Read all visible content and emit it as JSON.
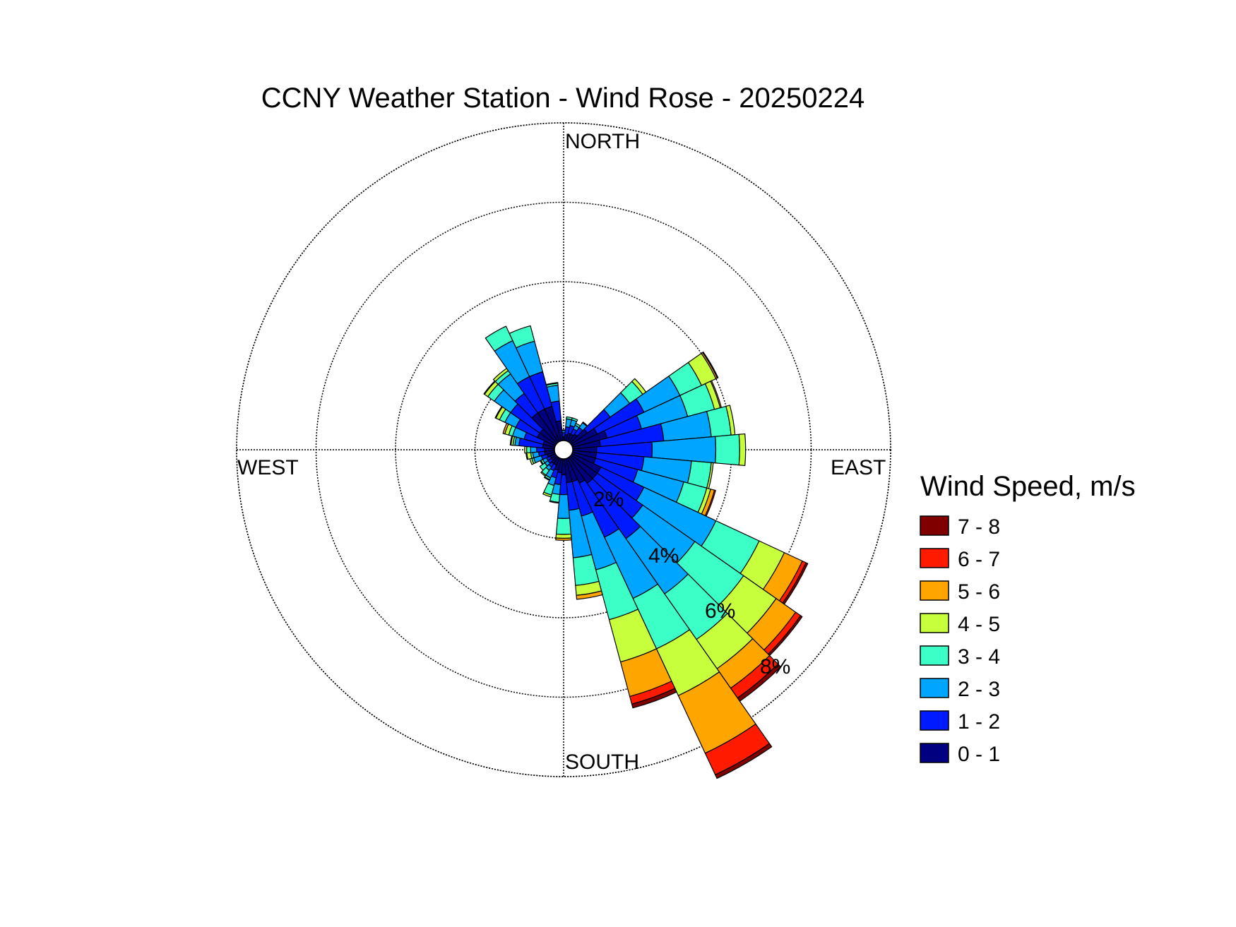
{
  "chart_data": {
    "type": "wind-rose",
    "title": "CCNY Weather Station - Wind Rose - 20250224",
    "directions": [
      "NORTH",
      "EAST",
      "SOUTH",
      "WEST"
    ],
    "radial_tick_labels": [
      "2%",
      "4%",
      "6%",
      "8%"
    ],
    "radial_range_percent": [
      0,
      8
    ],
    "grid": true,
    "legend": {
      "title": "Wind Speed, m/s",
      "placement": "right",
      "bins": [
        {
          "label": "7 - 8",
          "color": "#800000"
        },
        {
          "label": "6 - 7",
          "color": "#ff1a00"
        },
        {
          "label": "5 - 6",
          "color": "#ffa500"
        },
        {
          "label": "4 - 5",
          "color": "#c8ff3c"
        },
        {
          "label": "3 - 4",
          "color": "#3cffc8"
        },
        {
          "label": "2 - 3",
          "color": "#00a5ff"
        },
        {
          "label": "1 - 2",
          "color": "#001aff"
        },
        {
          "label": "0 - 1",
          "color": "#000080"
        }
      ]
    },
    "sector_width_deg": 10,
    "speed_bins_low_to_high": [
      "0 - 1",
      "1 - 2",
      "2 - 3",
      "3 - 4",
      "4 - 5",
      "5 - 6",
      "6 - 7",
      "7 - 8"
    ],
    "sectors": [
      {
        "dir": 0,
        "cum": [
          0.1,
          0.2,
          0.25,
          0.27
        ]
      },
      {
        "dir": 10,
        "cum": [
          0.15,
          0.35,
          0.55,
          0.6
        ]
      },
      {
        "dir": 20,
        "cum": [
          0.2,
          0.4,
          0.55,
          0.6
        ]
      },
      {
        "dir": 30,
        "cum": [
          0.2,
          0.35,
          0.45,
          0.5
        ]
      },
      {
        "dir": 40,
        "cum": [
          0.25,
          0.45,
          0.6,
          0.62
        ]
      },
      {
        "dir": 50,
        "cum": [
          0.5,
          1.2,
          1.8,
          2.2,
          2.3
        ]
      },
      {
        "dir": 60,
        "cum": [
          0.7,
          2.0,
          3.0,
          3.6,
          4.0,
          4.04,
          4.06
        ]
      },
      {
        "dir": 70,
        "cum": [
          0.9,
          1.8,
          3.0,
          3.7,
          3.85,
          3.88
        ]
      },
      {
        "dir": 80,
        "cum": [
          0.7,
          2.3,
          3.5,
          4.0,
          4.1
        ]
      },
      {
        "dir": 90,
        "cum": [
          0.6,
          2.0,
          3.6,
          4.2,
          4.35
        ]
      },
      {
        "dir": 100,
        "cum": [
          0.6,
          1.8,
          3.0,
          3.5,
          3.55
        ]
      },
      {
        "dir": 110,
        "cum": [
          0.6,
          1.7,
          2.9,
          3.5,
          3.6,
          3.7,
          3.73
        ]
      },
      {
        "dir": 120,
        "cum": [
          0.8,
          2.0,
          4.0,
          5.2,
          5.9,
          6.4,
          6.5,
          6.55
        ]
      },
      {
        "dir": 130,
        "cum": [
          0.8,
          2.2,
          3.8,
          5.3,
          6.3,
          6.9,
          7.05,
          7.1
        ]
      },
      {
        "dir": 140,
        "cum": [
          0.8,
          2.5,
          4.2,
          5.6,
          6.5,
          7.1,
          7.4,
          7.5
        ]
      },
      {
        "dir": 150,
        "cum": [
          0.7,
          2.2,
          3.9,
          5.3,
          6.6,
          8.2,
          8.8,
          8.9
        ]
      },
      {
        "dir": 160,
        "cum": [
          0.6,
          1.5,
          2.9,
          4.2,
          5.3,
          6.2,
          6.4,
          6.5
        ]
      },
      {
        "dir": 170,
        "cum": [
          0.6,
          1.3,
          2.5,
          3.2,
          3.45,
          3.55
        ]
      },
      {
        "dir": 180,
        "cum": [
          0.4,
          0.9,
          1.5,
          1.9,
          2.0,
          2.05
        ]
      },
      {
        "dir": 190,
        "cum": [
          0.35,
          0.65,
          0.9,
          1.1,
          1.12
        ]
      },
      {
        "dir": 200,
        "cum": [
          0.3,
          0.5,
          0.7,
          0.95,
          1.0
        ]
      },
      {
        "dir": 210,
        "cum": [
          0.2,
          0.35,
          0.55,
          0.6,
          0.62
        ]
      },
      {
        "dir": 220,
        "cum": [
          0.2,
          0.3,
          0.4,
          0.55,
          0.58
        ]
      },
      {
        "dir": 230,
        "cum": [
          0.15,
          0.25,
          0.35,
          0.5
        ]
      },
      {
        "dir": 240,
        "cum": [
          0.15,
          0.25,
          0.35,
          0.4,
          0.42
        ]
      },
      {
        "dir": 250,
        "cum": [
          0.2,
          0.35,
          0.55,
          0.6,
          0.65
        ]
      },
      {
        "dir": 260,
        "cum": [
          0.25,
          0.4,
          0.55,
          0.6,
          0.7,
          0.72
        ]
      },
      {
        "dir": 270,
        "cum": [
          0.25,
          0.45,
          0.6,
          0.7,
          0.75
        ]
      },
      {
        "dir": 280,
        "cum": [
          0.3,
          0.9,
          1.0,
          1.05,
          1.1,
          1.12
        ]
      },
      {
        "dir": 290,
        "cum": [
          0.3,
          0.8,
          1.1,
          1.2,
          1.3,
          1.35
        ]
      },
      {
        "dir": 300,
        "cum": [
          0.5,
          1.1,
          1.4,
          1.55,
          1.65,
          1.67
        ]
      },
      {
        "dir": 310,
        "cum": [
          0.5,
          1.4,
          1.9,
          2.1,
          2.2,
          2.22
        ]
      },
      {
        "dir": 320,
        "cum": [
          0.9,
          1.5,
          2.1,
          2.2,
          2.27
        ]
      },
      {
        "dir": 330,
        "cum": [
          0.9,
          1.8,
          2.8,
          3.2
        ]
      },
      {
        "dir": 340,
        "cum": [
          0.9,
          1.8,
          2.6,
          3.0
        ]
      },
      {
        "dir": 350,
        "cum": [
          0.5,
          1.0,
          1.4,
          1.45,
          1.47
        ]
      }
    ]
  }
}
